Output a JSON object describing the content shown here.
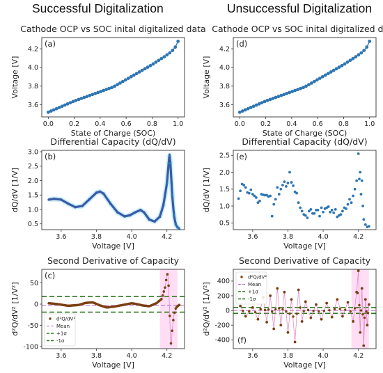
{
  "headings": {
    "left": "Successful Digitalization",
    "right": "Unsuccessful Digitalization"
  },
  "colors": {
    "ocp": "#2f76b3",
    "dqdv": "#3a5aa8",
    "dqdv_peak": "#2f76b3",
    "second_deriv": "#7b3f12",
    "mean_line": "#c060c8",
    "sigma_line": "#2c7a1f",
    "band": "#ffd6f2",
    "smooth_band": "#8ee0f0"
  },
  "chart_data": [
    {
      "id": "a",
      "panel_label": "(a)",
      "type": "line",
      "title": "Cathode OCP vs SOC inital digitalized data",
      "xlabel": "State of Charge (SOC)",
      "ylabel": "Voltage [V]",
      "xlim": [
        -0.05,
        1.05
      ],
      "ylim": [
        3.47,
        4.32
      ],
      "xticks": [
        "0.0",
        "0.2",
        "0.4",
        "0.6",
        "0.8",
        "1.0"
      ],
      "yticks": [
        "3.6",
        "3.8",
        "4.0",
        "4.2"
      ],
      "series": [
        {
          "x": [
            0.0,
            0.1,
            0.2,
            0.3,
            0.4,
            0.5,
            0.6,
            0.7,
            0.8,
            0.9,
            0.95,
            0.98,
            1.0
          ],
          "y": [
            3.52,
            3.58,
            3.64,
            3.69,
            3.74,
            3.79,
            3.87,
            3.95,
            4.03,
            4.12,
            4.17,
            4.22,
            4.28
          ]
        }
      ],
      "markers": 48
    },
    {
      "id": "d",
      "panel_label": "(d)",
      "type": "line",
      "title": "Cathode OCP vs SOC inital digitalized data",
      "xlabel": "State of Charge (SOC)",
      "ylabel": "Voltage [V]",
      "xlim": [
        -0.05,
        1.05
      ],
      "ylim": [
        3.47,
        4.32
      ],
      "xticks": [
        "0.0",
        "0.2",
        "0.4",
        "0.6",
        "0.8",
        "1.0"
      ],
      "yticks": [
        "3.6",
        "3.8",
        "4.0",
        "4.2"
      ],
      "series": [
        {
          "x": [
            0.0,
            0.1,
            0.2,
            0.3,
            0.4,
            0.5,
            0.6,
            0.7,
            0.8,
            0.9,
            0.95,
            0.98,
            1.0
          ],
          "y": [
            3.52,
            3.58,
            3.64,
            3.69,
            3.74,
            3.79,
            3.87,
            3.95,
            4.03,
            4.12,
            4.17,
            4.22,
            4.28
          ]
        }
      ],
      "markers": 48
    },
    {
      "id": "b",
      "panel_label": "(b)",
      "type": "line",
      "title": "Differential Capacity (dQ/dV)",
      "xlabel": "Voltage [V]",
      "ylabel": "dQ/dV [1/V]",
      "xlim": [
        3.49,
        4.3
      ],
      "ylim": [
        0.3,
        3.05
      ],
      "xticks": [
        "3.6",
        "3.8",
        "4.0",
        "4.2"
      ],
      "yticks": [
        "0.5",
        "1.0",
        "1.5",
        "2.0",
        "2.5",
        "3.0"
      ],
      "series": [
        {
          "x": [
            3.53,
            3.56,
            3.6,
            3.64,
            3.68,
            3.72,
            3.76,
            3.8,
            3.82,
            3.84,
            3.88,
            3.92,
            3.96,
            3.99,
            4.02,
            4.05,
            4.07,
            4.1,
            4.13,
            4.16,
            4.18,
            4.2,
            4.21,
            4.215,
            4.22,
            4.23,
            4.24,
            4.25,
            4.26,
            4.27
          ],
          "y": [
            1.34,
            1.37,
            1.34,
            1.2,
            1.08,
            1.12,
            1.35,
            1.58,
            1.62,
            1.55,
            1.2,
            0.9,
            0.76,
            0.8,
            0.9,
            0.98,
            0.9,
            0.65,
            0.58,
            0.75,
            1.15,
            1.9,
            2.6,
            2.9,
            2.6,
            1.5,
            0.8,
            0.48,
            0.38,
            0.34
          ]
        }
      ]
    },
    {
      "id": "e",
      "panel_label": "(e)",
      "type": "scatter",
      "title": "Differential Capacity (dQ/dV)",
      "xlabel": "Voltage [V]",
      "ylabel": "dQ/dV [1/V]",
      "xlim": [
        3.49,
        4.3
      ],
      "ylim": [
        0.3,
        2.65
      ],
      "xticks": [
        "3.6",
        "3.8",
        "4.0",
        "4.2"
      ],
      "yticks": [
        "0.5",
        "1.0",
        "1.5",
        "2.0",
        "2.5"
      ],
      "series": [
        {
          "x": [
            3.52,
            3.53,
            3.54,
            3.55,
            3.56,
            3.57,
            3.58,
            3.59,
            3.6,
            3.61,
            3.62,
            3.63,
            3.64,
            3.65,
            3.66,
            3.67,
            3.68,
            3.69,
            3.7,
            3.71,
            3.72,
            3.73,
            3.74,
            3.75,
            3.76,
            3.77,
            3.78,
            3.79,
            3.8,
            3.81,
            3.82,
            3.83,
            3.84,
            3.85,
            3.86,
            3.87,
            3.88,
            3.89,
            3.9,
            3.91,
            3.92,
            3.93,
            3.94,
            3.95,
            3.96,
            3.97,
            3.98,
            3.99,
            4.0,
            4.01,
            4.02,
            4.03,
            4.04,
            4.05,
            4.06,
            4.07,
            4.08,
            4.09,
            4.1,
            4.11,
            4.12,
            4.13,
            4.14,
            4.15,
            4.16,
            4.17,
            4.18,
            4.19,
            4.2,
            4.205,
            4.21,
            4.215,
            4.22,
            4.225,
            4.23,
            4.24,
            4.25,
            4.26
          ],
          "y": [
            1.22,
            1.45,
            1.65,
            1.62,
            1.55,
            1.4,
            1.38,
            1.48,
            1.35,
            1.3,
            1.25,
            1.1,
            1.15,
            1.35,
            1.33,
            1.32,
            1.32,
            1.28,
            1.3,
            0.7,
            1.05,
            1.2,
            1.55,
            1.35,
            1.5,
            1.62,
            1.72,
            1.58,
            1.68,
            2.0,
            1.7,
            1.6,
            1.42,
            1.38,
            1.1,
            0.95,
            0.85,
            0.75,
            0.72,
            0.65,
            0.85,
            0.9,
            0.78,
            0.78,
            0.88,
            0.88,
            0.7,
            0.95,
            0.82,
            0.92,
            0.95,
            0.98,
            0.82,
            0.88,
            0.8,
            0.9,
            0.68,
            0.72,
            0.75,
            0.85,
            0.95,
            0.92,
            1.05,
            1.2,
            1.1,
            1.3,
            1.5,
            1.75,
            2.55,
            1.8,
            2.0,
            1.35,
            1.75,
            1.0,
            0.6,
            0.45,
            0.38,
            0.4
          ]
        }
      ]
    },
    {
      "id": "c",
      "panel_label": "(c)",
      "type": "line",
      "title": "Second Derivative of Capacity",
      "xlabel": "Voltage [V]",
      "ylabel": "d²Q/dV² [1/V²]",
      "xlim": [
        3.49,
        4.3
      ],
      "ylim": [
        -105,
        82
      ],
      "xticks": [
        "3.6",
        "3.8",
        "4.0",
        "4.2"
      ],
      "yticks": [
        "-100",
        "-50",
        "0",
        "50"
      ],
      "mean": -3,
      "plus_sigma": 18,
      "minus_sigma": -19,
      "series": [
        {
          "x": [
            3.53,
            3.58,
            3.64,
            3.7,
            3.74,
            3.78,
            3.82,
            3.86,
            3.9,
            3.95,
            4.0,
            4.03,
            4.06,
            4.1,
            4.14,
            4.17,
            4.19,
            4.2,
            4.205,
            4.21,
            4.215,
            4.22,
            4.225,
            4.23,
            4.24,
            4.25,
            4.26,
            4.27
          ],
          "y": [
            2,
            0,
            -4,
            -2,
            3,
            4,
            -3,
            -8,
            -6,
            -2,
            2,
            0,
            -3,
            -5,
            2,
            12,
            40,
            68,
            72,
            40,
            -10,
            -85,
            -98,
            -60,
            -25,
            -10,
            -5,
            -2
          ]
        }
      ],
      "legend": [
        {
          "label": "d²Q/dV²",
          "kind": "marker"
        },
        {
          "label": "Mean",
          "kind": "mean"
        },
        {
          "label": "+1σ",
          "kind": "sigma"
        },
        {
          "label": "-1σ",
          "kind": "sigma"
        }
      ],
      "legend_loc": "lower left"
    },
    {
      "id": "f",
      "panel_label": "(f)",
      "type": "line",
      "title": "Second Derivative of Capacity",
      "xlabel": "Voltage [V]",
      "ylabel": "d²Q/dV² [1/V²]",
      "xlim": [
        3.49,
        4.3
      ],
      "ylim": [
        -520,
        560
      ],
      "xticks": [
        "3.6",
        "3.8",
        "4.0",
        "4.2"
      ],
      "yticks": [
        "-400",
        "-200",
        "0",
        "200",
        "400"
      ],
      "mean": 0,
      "plus_sigma": 40,
      "minus_sigma": -40,
      "series": [
        {
          "x": [
            3.53,
            3.56,
            3.6,
            3.63,
            3.66,
            3.68,
            3.7,
            3.72,
            3.74,
            3.76,
            3.78,
            3.8,
            3.82,
            3.84,
            3.86,
            3.88,
            3.9,
            3.93,
            3.96,
            3.99,
            4.02,
            4.05,
            4.08,
            4.11,
            4.14,
            4.17,
            4.19,
            4.2,
            4.21,
            4.22,
            4.23,
            4.24,
            4.25,
            4.26
          ],
          "y": [
            60,
            -80,
            40,
            -120,
            180,
            -160,
            200,
            -250,
            300,
            -200,
            250,
            -300,
            150,
            -430,
            280,
            -150,
            120,
            -100,
            80,
            -120,
            100,
            -90,
            150,
            -80,
            110,
            -150,
            250,
            540,
            -300,
            300,
            -480,
            150,
            -200,
            80
          ]
        }
      ],
      "legend": [
        {
          "label": "d²Q/dV²",
          "kind": "marker"
        },
        {
          "label": "Mean",
          "kind": "mean"
        },
        {
          "label": "+1σ",
          "kind": "sigma"
        },
        {
          "label": "-1σ",
          "kind": "sigma"
        }
      ],
      "legend_loc": "upper left"
    }
  ]
}
